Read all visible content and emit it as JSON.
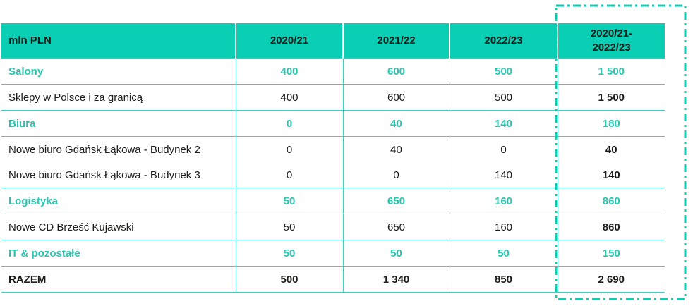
{
  "colors": {
    "header_bg": "#0BCFB4",
    "teal_text": "#2AC5AF",
    "grid_line": "#41CCB8",
    "highlight_border": "#0BCFB4",
    "dark_text": "#1C1C1A"
  },
  "chart_data": {
    "type": "table",
    "unit_label": "mln PLN",
    "columns": [
      "2020/21",
      "2021/22",
      "2022/23",
      "2020/21-2022/23"
    ],
    "column_display": [
      "2020/21",
      "2021/22",
      "2022/23",
      "2020/21-\n2022/23"
    ],
    "rows": [
      {
        "label": "Salony",
        "style": "category",
        "values": [
          400,
          600,
          500,
          1500
        ],
        "display": [
          "400",
          "600",
          "500",
          "1 500"
        ]
      },
      {
        "label": "Sklepy w Polsce i za granicą",
        "style": "detail",
        "values": [
          400,
          600,
          500,
          1500
        ],
        "display": [
          "400",
          "600",
          "500",
          "1 500"
        ]
      },
      {
        "label": "Biura",
        "style": "category",
        "values": [
          0,
          40,
          140,
          180
        ],
        "display": [
          "0",
          "40",
          "140",
          "180"
        ]
      },
      {
        "label": "Nowe biuro Gdańsk Łąkowa - Budynek 2",
        "style": "detail",
        "values": [
          0,
          40,
          0,
          40
        ],
        "display": [
          "0",
          "40",
          "0",
          "40"
        ]
      },
      {
        "label": "Nowe biuro Gdańsk Łąkowa - Budynek 3",
        "style": "detail",
        "merged_with_above": true,
        "values": [
          0,
          0,
          140,
          140
        ],
        "display": [
          "0",
          "0",
          "140",
          "140"
        ]
      },
      {
        "label": "Logistyka",
        "style": "category",
        "values": [
          50,
          650,
          160,
          860
        ],
        "display": [
          "50",
          "650",
          "160",
          "860"
        ]
      },
      {
        "label": "Nowe CD Brześć Kujawski",
        "style": "detail",
        "values": [
          50,
          650,
          160,
          860
        ],
        "display": [
          "50",
          "650",
          "160",
          "860"
        ]
      },
      {
        "label": "IT & pozostałe",
        "style": "category",
        "values": [
          50,
          50,
          50,
          150
        ],
        "display": [
          "50",
          "50",
          "50",
          "150"
        ]
      },
      {
        "label": "RAZEM",
        "style": "total",
        "values": [
          500,
          1340,
          850,
          2690
        ],
        "display": [
          "500",
          "1 340",
          "850",
          "2 690"
        ]
      }
    ],
    "layout": {
      "highlighted_column": "2020/21-2022/23",
      "highlight_style": "dash-dot teal rectangle around total column",
      "grid": "teal horizontal and vertical rules, header row teal fill"
    }
  }
}
